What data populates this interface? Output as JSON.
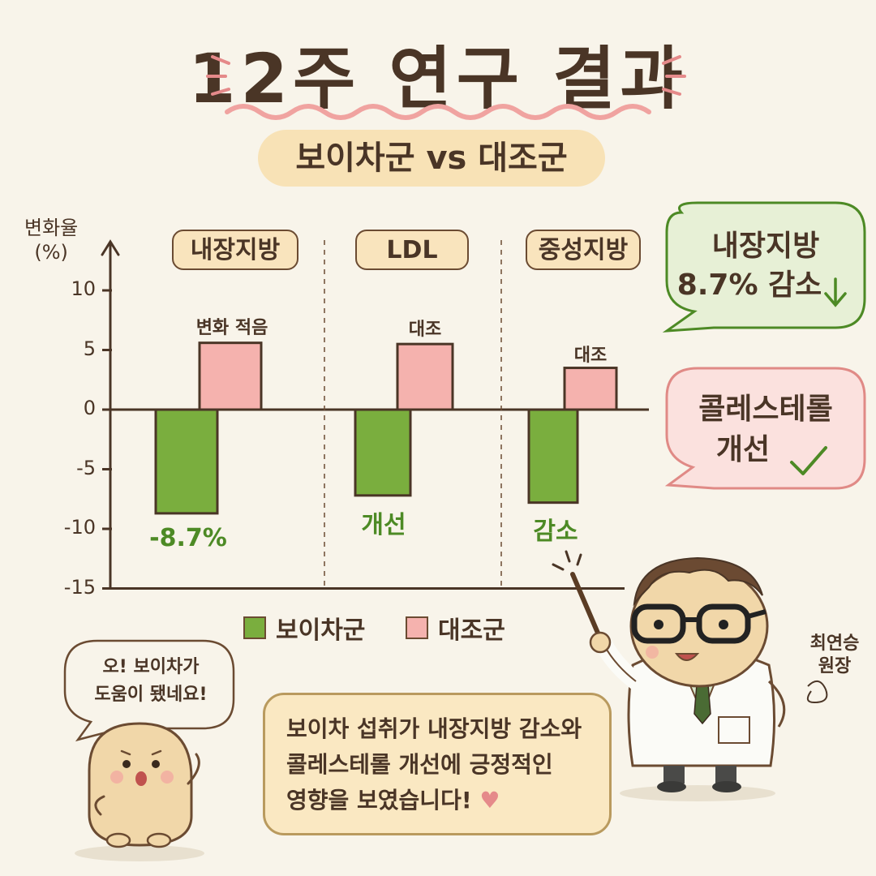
{
  "title": "12주 연구 결과",
  "subtitle": "보이차군 vs 대조군",
  "chart_data": {
    "type": "bar",
    "title": "12주 연구 결과",
    "subtitle": "보이차군 vs 대조군",
    "ylabel": "변화율 (%)",
    "ylabel_lines": [
      "변화율",
      "(%)"
    ],
    "ylim": [
      -15,
      10
    ],
    "yticks": [
      "10",
      "5",
      "0",
      "-5",
      "-10",
      "-15"
    ],
    "yticks_values": [
      10,
      5,
      0,
      -5,
      -10,
      -15
    ],
    "categories": [
      "내장지방",
      "LDL",
      "중성지방"
    ],
    "series": [
      {
        "name": "보이차군",
        "color": "#7aae3e",
        "values": [
          -8.7,
          -7.2,
          -7.8
        ]
      },
      {
        "name": "대조군",
        "color": "#f5b2ae",
        "values": [
          5.6,
          5.5,
          3.5
        ]
      }
    ],
    "annotations": {
      "control": [
        "변화 적음",
        "대조",
        "대조"
      ],
      "treatment": [
        "-8.7%",
        "개선",
        "감소"
      ]
    },
    "legend_position": "bottom",
    "grid": false
  },
  "bubbles": {
    "right_top": {
      "line1": "내장지방",
      "line2": "8.7% 감소"
    },
    "right_mid": {
      "line1": "콜레스테롤",
      "line2": "개선"
    },
    "left_char": {
      "line1": "오! 보이차가",
      "line2": "도움이 됐네요!"
    }
  },
  "note": {
    "line1": "보이차 섭취가 내장지방 감소와",
    "line2": "콜레스테롤 개선에 긍정적인",
    "line3": "영향을 보였습니다!"
  },
  "doctor": {
    "line1": "최연승",
    "line2": "원장"
  },
  "colors": {
    "treatment": "#7aae3e",
    "control": "#f5b2ae",
    "ink": "#4a3526",
    "accent_green": "#4d8a25"
  },
  "icons": [
    "down-arrow-icon",
    "check-icon",
    "heart-icon",
    "pointer-stick-icon"
  ]
}
